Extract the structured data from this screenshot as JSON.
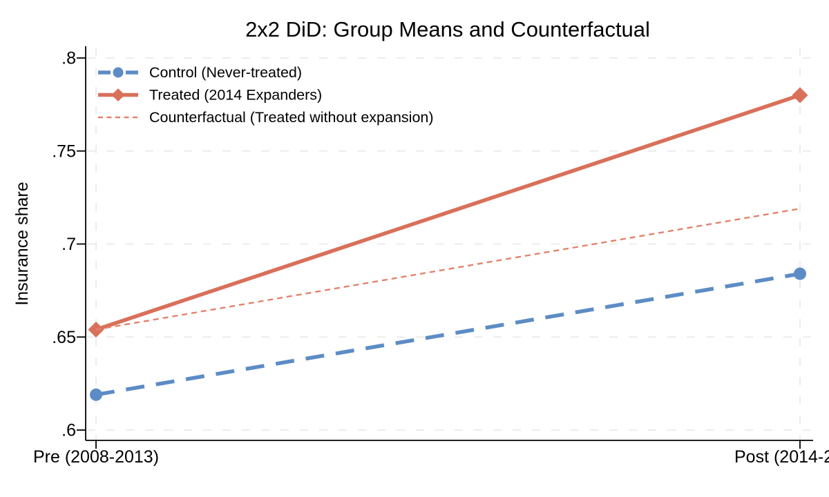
{
  "figure": {
    "background": "#FFFFFF"
  },
  "chart_data": {
    "type": "line",
    "title": "2x2 DiD: Group Means and Counterfactual",
    "xlabel": "",
    "ylabel": "Insurance share",
    "x": [
      0,
      1
    ],
    "x_categories": [
      "Pre",
      "Post"
    ],
    "x_tick_labels": [
      "Pre (2008-2013)",
      "Post (2014-2"
    ],
    "y_tick_labels": [
      ".8",
      ".75",
      ".7",
      ".65",
      ".6"
    ],
    "y_tick_values": [
      0.8,
      0.75,
      0.7,
      0.65,
      0.6
    ],
    "ylim": [
      0.6,
      0.8
    ],
    "grid": true,
    "grid_style": "dashed",
    "grid_color": "#ECECEC",
    "axis_color": "#000000",
    "legend_position": "top-left-inside",
    "series": [
      {
        "name": "Control (Never-treated)",
        "values": [
          0.619,
          0.684
        ],
        "color": "#5C8CC5",
        "line_style": "dashed",
        "line_width": 5.5,
        "marker": "circle"
      },
      {
        "name": "Treated (2014 Expanders)",
        "values": [
          0.654,
          0.78
        ],
        "color": "#D9705A",
        "line_style": "solid",
        "line_width": 5.5,
        "marker": "diamond"
      },
      {
        "name": "Counterfactual (Treated without expansion)",
        "values": [
          0.654,
          0.719
        ],
        "color": "#E2826C",
        "line_style": "short-dash",
        "line_width": 2.4,
        "marker": "none"
      }
    ]
  }
}
